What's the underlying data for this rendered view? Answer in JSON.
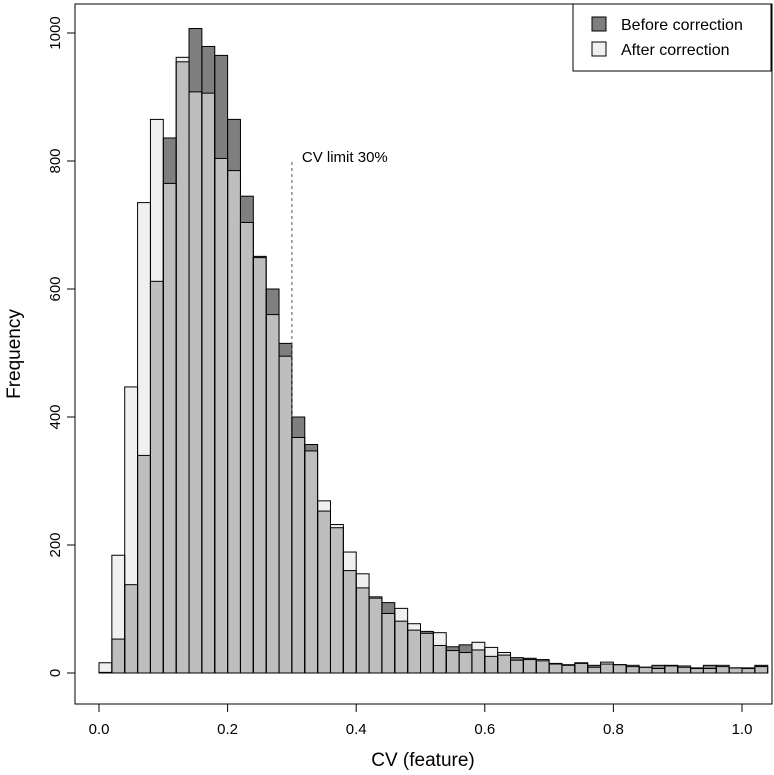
{
  "chart_data": {
    "type": "bar",
    "subtype": "overlaid-histogram",
    "xlabel": "CV (feature)",
    "ylabel": "Frequency",
    "xlim": [
      0.0,
      1.04
    ],
    "ylim": [
      0,
      1000
    ],
    "x_ticks": [
      0.0,
      0.2,
      0.4,
      0.6,
      0.8,
      1.0
    ],
    "x_tick_labels": [
      "0.0",
      "0.2",
      "0.4",
      "0.6",
      "0.8",
      "1.0"
    ],
    "y_ticks": [
      0,
      200,
      400,
      600,
      800,
      1000
    ],
    "y_tick_labels": [
      "0",
      "200",
      "400",
      "600",
      "800",
      "1000"
    ],
    "bin_width": 0.02,
    "bin_starts": [
      0.0,
      0.02,
      0.04,
      0.06,
      0.08,
      0.1,
      0.12,
      0.14,
      0.16,
      0.18,
      0.2,
      0.22,
      0.24,
      0.26,
      0.28,
      0.3,
      0.32,
      0.34,
      0.36,
      0.38,
      0.4,
      0.42,
      0.44,
      0.46,
      0.48,
      0.5,
      0.52,
      0.54,
      0.56,
      0.58,
      0.6,
      0.62,
      0.64,
      0.66,
      0.68,
      0.7,
      0.72,
      0.74,
      0.76,
      0.78,
      0.8,
      0.82,
      0.84,
      0.86,
      0.88,
      0.9,
      0.92,
      0.94,
      0.96,
      0.98,
      1.0,
      1.02
    ],
    "series": [
      {
        "name": "Before correction",
        "color": "#7f7f7f",
        "values": [
          1,
          53,
          138,
          340,
          612,
          836,
          955,
          1007,
          979,
          965,
          865,
          745,
          651,
          600,
          515,
          400,
          357,
          253,
          227,
          160,
          133,
          117,
          110,
          81,
          67,
          65,
          43,
          41,
          44,
          36,
          26,
          28,
          24,
          23,
          19,
          15,
          13,
          15,
          12,
          14,
          13,
          10,
          9,
          12,
          12,
          9,
          7,
          12,
          10,
          8,
          8,
          12
        ]
      },
      {
        "name": "After correction",
        "color": "#f0f0f0",
        "values": [
          16,
          184,
          447,
          735,
          865,
          765,
          962,
          908,
          906,
          804,
          785,
          704,
          649,
          560,
          495,
          368,
          347,
          269,
          232,
          189,
          155,
          119,
          93,
          101,
          77,
          62,
          63,
          35,
          32,
          48,
          40,
          32,
          20,
          21,
          21,
          14,
          12,
          16,
          9,
          17,
          13,
          12,
          9,
          7,
          11,
          11,
          8,
          7,
          12,
          8,
          7,
          10
        ]
      }
    ],
    "overlap_color": "#bebebe",
    "legend": {
      "position": "top-right",
      "entries": [
        "Before correction",
        "After correction"
      ]
    },
    "annotations": [
      {
        "text": "CV limit 30%",
        "x": 0.3,
        "y_from": 400,
        "y_to": 800,
        "style": "dashed"
      }
    ],
    "grid": false
  }
}
